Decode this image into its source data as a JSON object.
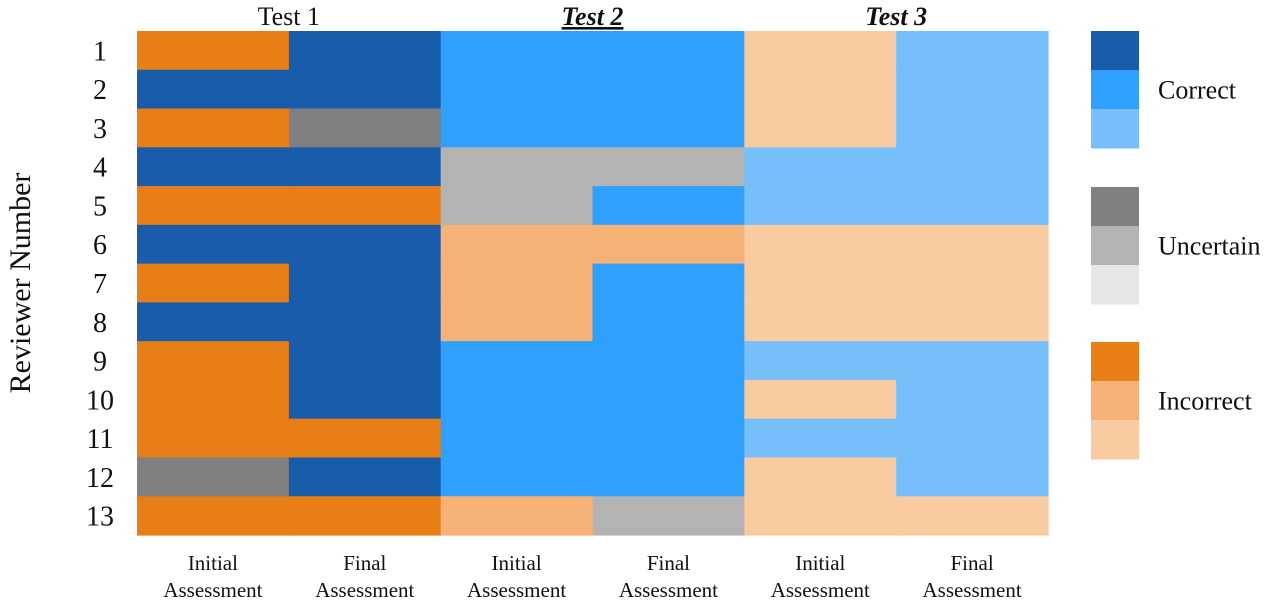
{
  "chart_data": {
    "type": "heatmap",
    "title": "",
    "ylabel": "Reviewer Number",
    "groups": [
      {
        "label": "Test 1",
        "style": "normal"
      },
      {
        "label": "Test 2",
        "style": "bold-italic-underline"
      },
      {
        "label": "Test 3",
        "style": "bold-italic"
      }
    ],
    "column_labels": [
      [
        "Initial",
        "Assessment"
      ],
      [
        "Final",
        "Assessment"
      ],
      [
        "Initial",
        "Assessment"
      ],
      [
        "Final",
        "Assessment"
      ],
      [
        "Initial",
        "Assessment"
      ],
      [
        "Final",
        "Assessment"
      ]
    ],
    "rows": [
      "1",
      "2",
      "3",
      "4",
      "5",
      "6",
      "7",
      "8",
      "9",
      "10",
      "11",
      "12",
      "13"
    ],
    "palette": {
      "C3": "#1a5cac",
      "C2": "#2fa0fd",
      "C1": "#77bffb",
      "U3": "#808080",
      "U2": "#b3b3b3",
      "U1": "#e6e6e6",
      "I3": "#e87e16",
      "I2": "#f5b176",
      "I1": "#f8cba1"
    },
    "legend": [
      {
        "label": "Correct",
        "shades": [
          "C3",
          "C2",
          "C1"
        ]
      },
      {
        "label": "Uncertain",
        "shades": [
          "U3",
          "U2",
          "U1"
        ]
      },
      {
        "label": "Incorrect",
        "shades": [
          "I3",
          "I2",
          "I1"
        ]
      }
    ],
    "legend_position": "right",
    "columns": [
      [
        "I3",
        "C3",
        "I3",
        "C3",
        "I3",
        "C3",
        "I3",
        "C3",
        "I3",
        "I3",
        "I3",
        "U3",
        "I3"
      ],
      [
        "C3",
        "C3",
        "U3",
        "C3",
        "I3",
        "C3",
        "C3",
        "C3",
        "C3",
        "C3",
        "I3",
        "C3",
        "I3"
      ],
      [
        "C2",
        "C2",
        "C2",
        "U2",
        "U2",
        "I2",
        "I2",
        "I2",
        "C2",
        "C2",
        "C2",
        "C2",
        "I2"
      ],
      [
        "C2",
        "C2",
        "C2",
        "U2",
        "C2",
        "I2",
        "C2",
        "C2",
        "C2",
        "C2",
        "C2",
        "C2",
        "U2"
      ],
      [
        "I1",
        "I1",
        "I1",
        "C1",
        "C1",
        "I1",
        "I1",
        "I1",
        "C1",
        "I1",
        "C1",
        "I1",
        "I1"
      ],
      [
        "C1",
        "C1",
        "C1",
        "C1",
        "C1",
        "I1",
        "I1",
        "I1",
        "C1",
        "C1",
        "C1",
        "C1",
        "I1"
      ]
    ]
  }
}
